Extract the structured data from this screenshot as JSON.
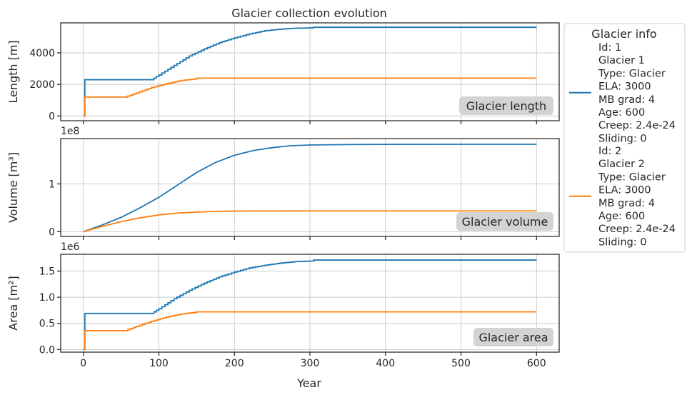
{
  "colors": {
    "glacier_1": "#1f77b4",
    "glacier_2": "#ff7f0e"
  },
  "chart_data": {
    "type": "line",
    "title": "Glacier collection evolution",
    "xlabel": "Year",
    "xlim": [
      -30,
      630
    ],
    "xticks": [
      0,
      100,
      200,
      300,
      400,
      500,
      600
    ],
    "grid": true,
    "legend": {
      "title": "Glacier info",
      "placement": "right",
      "entries": [
        {
          "color": "#1f77b4",
          "lines": [
            "Id: 1",
            "Glacier 1",
            "Type: Glacier",
            "ELA: 3000",
            "MB grad: 4",
            "Age: 600",
            "Creep: 2.4e-24",
            "Sliding: 0"
          ]
        },
        {
          "color": "#ff7f0e",
          "lines": [
            "Id: 2",
            "Glacier 2",
            "Type: Glacier",
            "ELA: 3000",
            "MB grad: 4",
            "Age: 600",
            "Creep: 2.4e-24",
            "Sliding: 0"
          ]
        }
      ]
    },
    "panels": [
      {
        "key": "length",
        "ylabel": "Length [m]",
        "badge": "Glacier length",
        "ylim": [
          -300,
          5900
        ],
        "yticks": [
          0,
          2000,
          4000
        ],
        "ytick_labels": [
          "0",
          "2000",
          "4000"
        ],
        "offset_text": "",
        "series": [
          {
            "stepped": true,
            "points": [
              [
                0,
                0
              ],
              [
                2,
                2300
              ],
              [
                90,
                2300
              ],
              [
                100,
                2600
              ],
              [
                120,
                3200
              ],
              [
                140,
                3800
              ],
              [
                160,
                4250
              ],
              [
                180,
                4650
              ],
              [
                200,
                4950
              ],
              [
                220,
                5200
              ],
              [
                240,
                5400
              ],
              [
                260,
                5500
              ],
              [
                280,
                5560
              ],
              [
                300,
                5580
              ],
              [
                305,
                5620
              ],
              [
                400,
                5620
              ],
              [
                500,
                5620
              ],
              [
                600,
                5620
              ]
            ]
          },
          {
            "stepped": true,
            "points": [
              [
                0,
                0
              ],
              [
                2,
                1200
              ],
              [
                55,
                1200
              ],
              [
                70,
                1450
              ],
              [
                90,
                1800
              ],
              [
                110,
                2050
              ],
              [
                130,
                2250
              ],
              [
                148,
                2350
              ],
              [
                150,
                2400
              ],
              [
                300,
                2400
              ],
              [
                600,
                2400
              ]
            ]
          }
        ]
      },
      {
        "key": "volume",
        "ylabel": "Volume [m³]",
        "badge": "Glacier volume",
        "ylim": [
          -0.1,
          1.95
        ],
        "yticks": [
          0,
          1
        ],
        "ytick_labels": [
          "0",
          "1"
        ],
        "offset_text": "1e8",
        "series": [
          {
            "stepped": false,
            "points": [
              [
                0,
                0
              ],
              [
                25,
                0.14
              ],
              [
                50,
                0.3
              ],
              [
                75,
                0.5
              ],
              [
                100,
                0.72
              ],
              [
                125,
                0.98
              ],
              [
                150,
                1.24
              ],
              [
                175,
                1.45
              ],
              [
                200,
                1.6
              ],
              [
                225,
                1.7
              ],
              [
                250,
                1.76
              ],
              [
                275,
                1.8
              ],
              [
                300,
                1.815
              ],
              [
                350,
                1.825
              ],
              [
                400,
                1.828
              ],
              [
                500,
                1.83
              ],
              [
                600,
                1.83
              ]
            ]
          },
          {
            "stepped": false,
            "points": [
              [
                0,
                0
              ],
              [
                25,
                0.11
              ],
              [
                50,
                0.21
              ],
              [
                75,
                0.29
              ],
              [
                100,
                0.35
              ],
              [
                125,
                0.39
              ],
              [
                150,
                0.41
              ],
              [
                175,
                0.425
              ],
              [
                200,
                0.43
              ],
              [
                300,
                0.435
              ],
              [
                600,
                0.435
              ]
            ]
          }
        ]
      },
      {
        "key": "area",
        "ylabel": "Area [m²]",
        "badge": "Glacier area",
        "ylim": [
          -0.05,
          1.82
        ],
        "yticks": [
          0,
          0.5,
          1.0,
          1.5
        ],
        "ytick_labels": [
          "0.0",
          "0.5",
          "1.0",
          "1.5"
        ],
        "offset_text": "1e6",
        "series": [
          {
            "stepped": true,
            "points": [
              [
                0,
                0
              ],
              [
                2,
                0.69
              ],
              [
                90,
                0.69
              ],
              [
                100,
                0.78
              ],
              [
                120,
                0.97
              ],
              [
                140,
                1.13
              ],
              [
                160,
                1.27
              ],
              [
                180,
                1.39
              ],
              [
                200,
                1.48
              ],
              [
                220,
                1.56
              ],
              [
                240,
                1.61
              ],
              [
                260,
                1.65
              ],
              [
                280,
                1.68
              ],
              [
                300,
                1.69
              ],
              [
                305,
                1.71
              ],
              [
                600,
                1.71
              ]
            ]
          },
          {
            "stepped": true,
            "points": [
              [
                0,
                0
              ],
              [
                2,
                0.36
              ],
              [
                55,
                0.36
              ],
              [
                70,
                0.44
              ],
              [
                90,
                0.54
              ],
              [
                110,
                0.62
              ],
              [
                130,
                0.68
              ],
              [
                148,
                0.71
              ],
              [
                150,
                0.72
              ],
              [
                600,
                0.72
              ]
            ]
          }
        ]
      }
    ]
  }
}
